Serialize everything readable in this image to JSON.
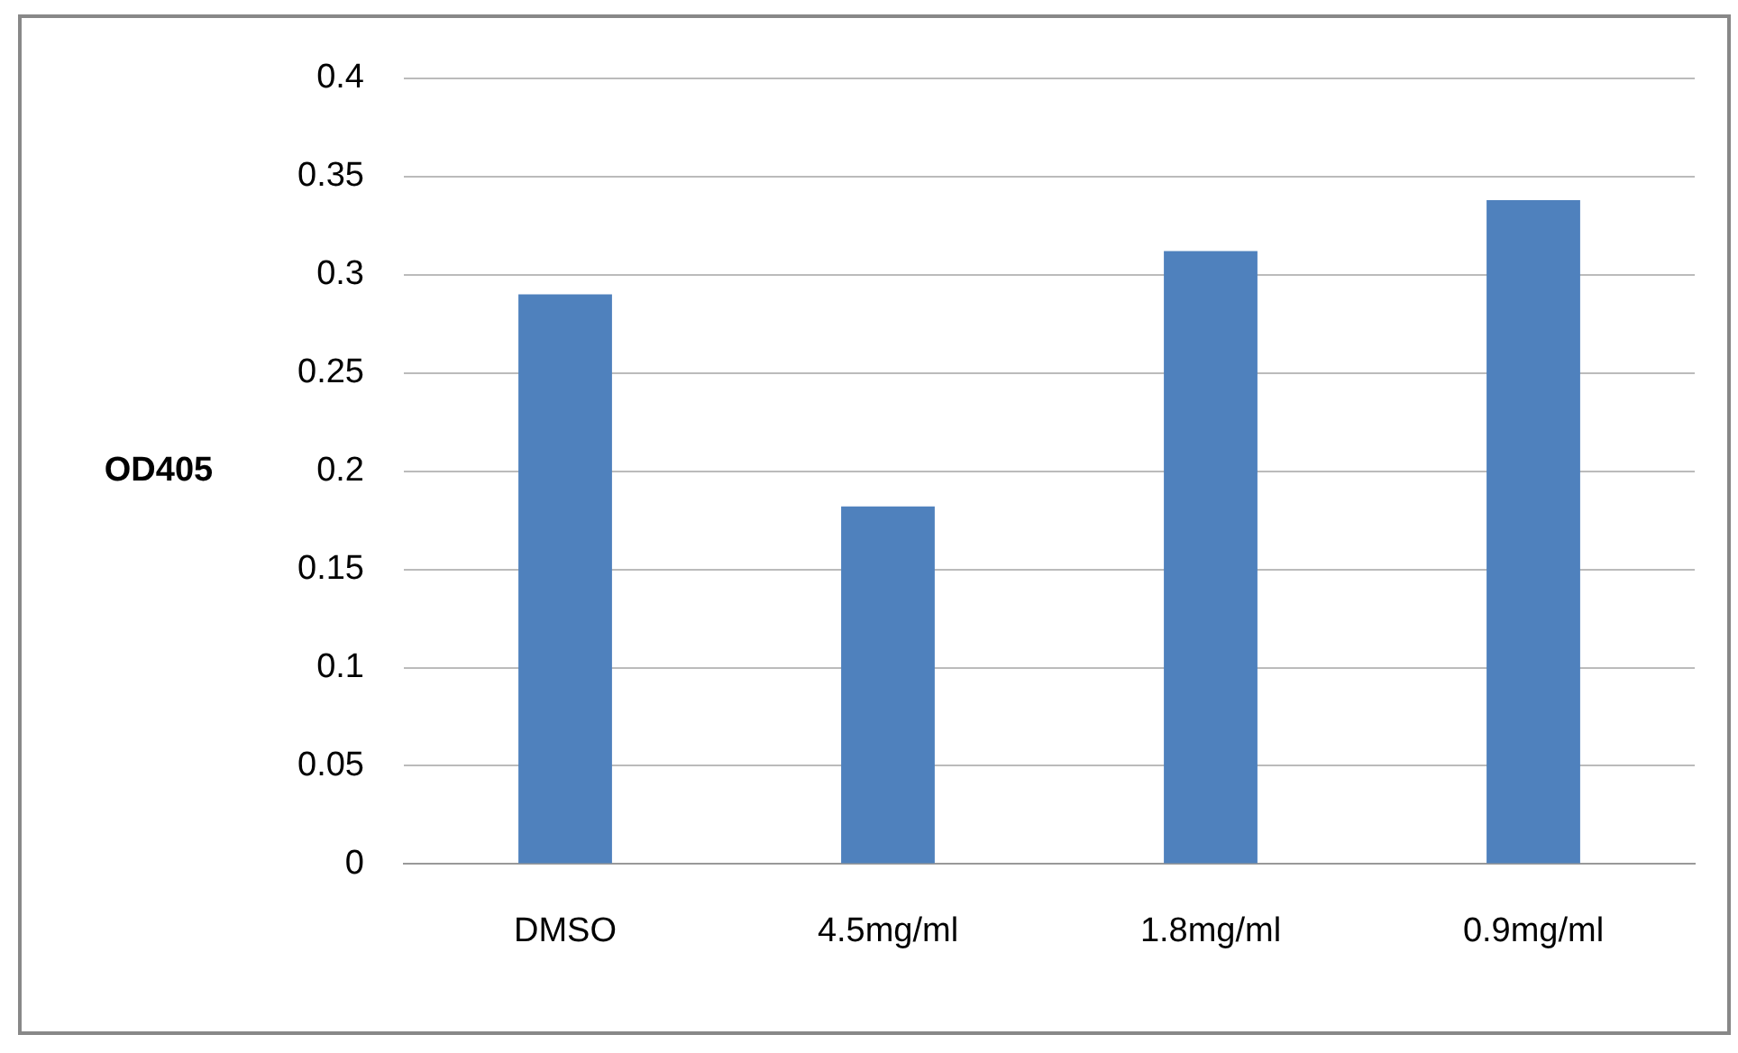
{
  "chart_data": {
    "type": "bar",
    "ylabel": "OD405",
    "categories": [
      "DMSO",
      "4.5mg/ml",
      "1.8mg/ml",
      "0.9mg/ml"
    ],
    "series": [
      {
        "color": "#4f81bd",
        "values": [
          0.29,
          0.182,
          0.312,
          0.338
        ]
      }
    ],
    "ylim": [
      0,
      0.4
    ],
    "yticks": [
      0,
      0.05,
      0.1,
      0.15,
      0.2,
      0.25,
      0.3,
      0.35,
      0.4
    ],
    "grid": "y",
    "legend": false
  }
}
